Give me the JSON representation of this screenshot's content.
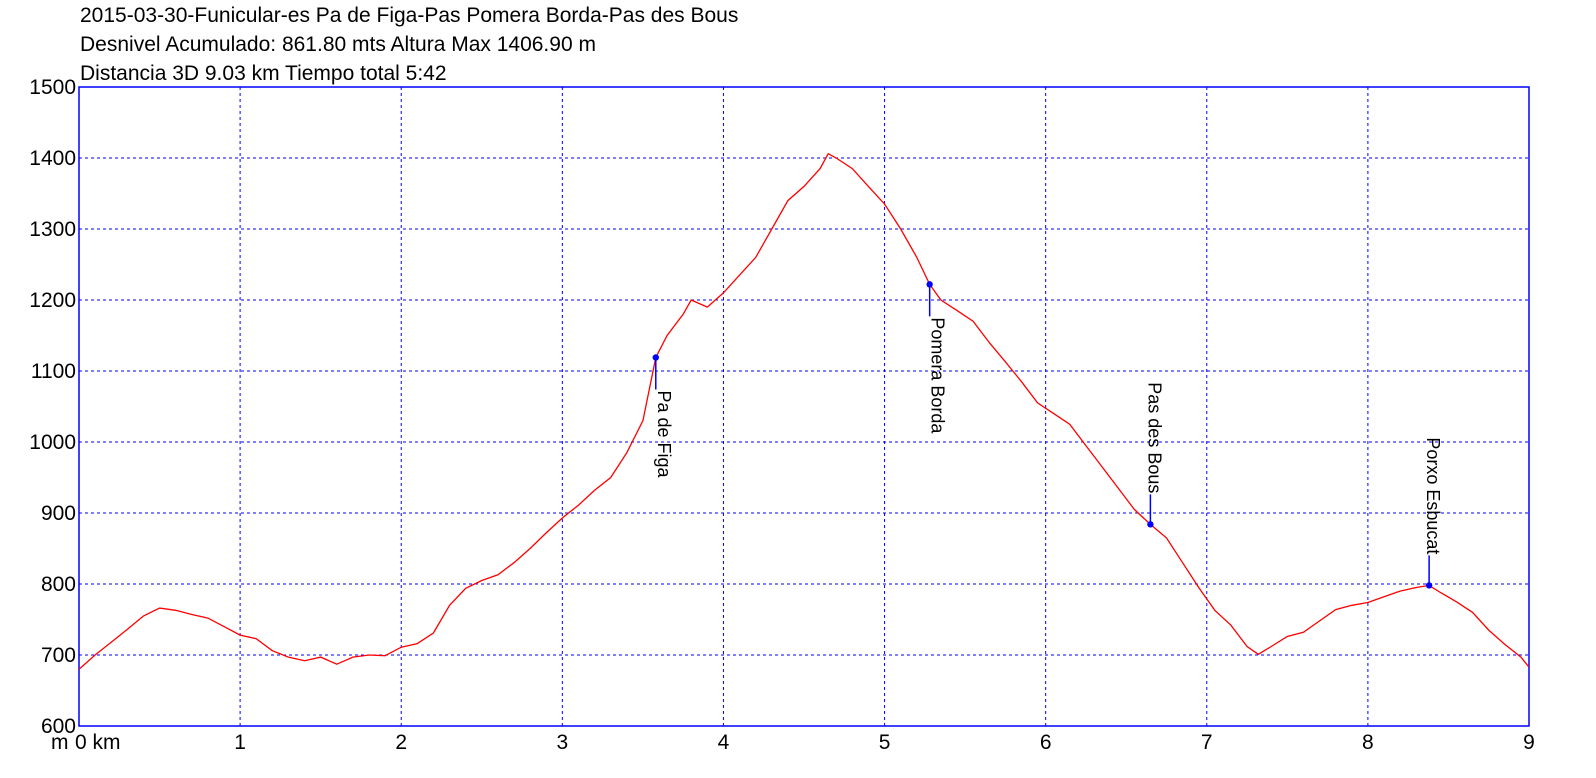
{
  "header": {
    "title": "2015-03-30-Funicular-es Pa de Figa-Pas Pomera Borda-Pas des Bous",
    "line2": "Desnivel Acumulado: 861.80 mts  Altura Max 1406.90 m",
    "line3": "Distancia 3D 9.03 km  Tiempo total 5:42"
  },
  "chart_data": {
    "type": "line",
    "title": "2015-03-30-Funicular-es Pa de Figa-Pas Pomera Borda-Pas des Bous",
    "xlabel": "km",
    "ylabel": "m",
    "xlim": [
      0,
      9
    ],
    "ylim": [
      600,
      1500
    ],
    "x_ticks": [
      "0 km",
      "1",
      "2",
      "3",
      "4",
      "5",
      "6",
      "7",
      "8",
      "9"
    ],
    "y_ticks": [
      "600",
      "700",
      "800",
      "900",
      "1000",
      "1100",
      "1200",
      "1300",
      "1400",
      "1500"
    ],
    "grid": true,
    "colors": {
      "line": "#ff0000",
      "grid": "#0000ff",
      "frame": "#0000ff",
      "waypoint": "#0000ff"
    },
    "series": [
      {
        "x": [
          0,
          0.1,
          0.2,
          0.3,
          0.4,
          0.5,
          0.6,
          0.7,
          0.8,
          0.9,
          1.0,
          1.1,
          1.2,
          1.3,
          1.4,
          1.5,
          1.6,
          1.7,
          1.8,
          1.9,
          2.0,
          2.1,
          2.2,
          2.3,
          2.4,
          2.5,
          2.6,
          2.7,
          2.8,
          2.9,
          3.0,
          3.1,
          3.2,
          3.3,
          3.4,
          3.5,
          3.58,
          3.65,
          3.75,
          3.8,
          3.9,
          4.0,
          4.1,
          4.2,
          4.3,
          4.4,
          4.5,
          4.6,
          4.65,
          4.7,
          4.8,
          4.9,
          5.0,
          5.1,
          5.2,
          5.28,
          5.35,
          5.45,
          5.55,
          5.65,
          5.75,
          5.85,
          5.95,
          6.05,
          6.15,
          6.25,
          6.35,
          6.45,
          6.55,
          6.65,
          6.75,
          6.85,
          6.95,
          7.05,
          7.15,
          7.25,
          7.32,
          7.4,
          7.5,
          7.6,
          7.7,
          7.8,
          7.9,
          8.0,
          8.1,
          8.2,
          8.3,
          8.38,
          8.45,
          8.55,
          8.65,
          8.75,
          8.85,
          8.95,
          9.0
        ],
        "y": [
          680,
          700,
          718,
          736,
          755,
          766,
          763,
          757,
          752,
          740,
          728,
          723,
          706,
          697,
          692,
          697,
          687,
          697,
          700,
          699,
          711,
          716,
          731,
          770,
          794,
          805,
          813,
          830,
          850,
          872,
          893,
          911,
          932,
          950,
          985,
          1030,
          1119,
          1150,
          1180,
          1200,
          1190,
          1210,
          1235,
          1260,
          1300,
          1340,
          1360,
          1385,
          1406,
          1400,
          1385,
          1360,
          1335,
          1300,
          1260,
          1222,
          1200,
          1185,
          1170,
          1140,
          1113,
          1085,
          1055,
          1040,
          1025,
          995,
          965,
          935,
          905,
          884,
          865,
          830,
          795,
          763,
          742,
          712,
          701,
          712,
          726,
          732,
          748,
          764,
          770,
          774,
          782,
          790,
          795,
          798,
          788,
          775,
          760,
          735,
          715,
          697,
          683
        ]
      }
    ],
    "waypoints": [
      {
        "name": "Pa de Figa",
        "x": 3.58,
        "y": 1119
      },
      {
        "name": "Pomera Borda",
        "x": 5.28,
        "y": 1222
      },
      {
        "name": "Pas des Bous",
        "x": 6.65,
        "y": 884
      },
      {
        "name": "Porxo Esbucat",
        "x": 8.38,
        "y": 798
      }
    ]
  }
}
